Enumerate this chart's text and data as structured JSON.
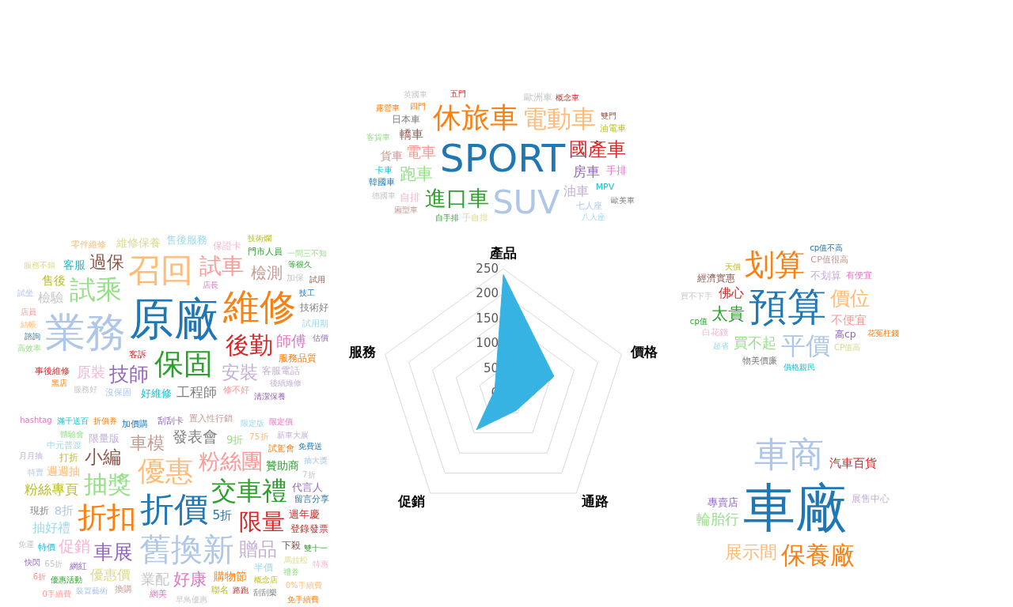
{
  "chart_data": [
    {
      "type": "radar",
      "categories": [
        "產品",
        "價格",
        "通路",
        "促銷",
        "服務"
      ],
      "series": [
        {
          "color": "#36b3e3",
          "values": [
            238,
            107,
            44,
            92,
            18
          ]
        }
      ],
      "ylim": [
        0,
        250
      ],
      "yticks": [
        0,
        50,
        100,
        150,
        200,
        250
      ],
      "grid": true,
      "marker": "none"
    },
    {
      "type": "other",
      "categories": [
        "SPORT",
        "SUV",
        "休旅車",
        "電動車",
        "進口車",
        "國產車",
        "跑車",
        "電車",
        "房車",
        "油車",
        "轎車",
        "貨車",
        "手排",
        "自排",
        "日本車",
        "歐洲車",
        "油電車",
        "手自排",
        "MPV",
        "七人座",
        "韓國車",
        "卡車",
        "自手排",
        "客貨車",
        "四門",
        "五門",
        "概念車",
        "雙門",
        "廂型車",
        "德國車",
        "歐美車",
        "八人座",
        "露營車",
        "英國車"
      ],
      "colors": [
        "#1f77b4",
        "#aec7e8",
        "#ff7f0e",
        "#ffbb78",
        "#2ca02c",
        "#d62728",
        "#98df8a",
        "#ff9896",
        "#9467bd",
        "#c5b0d5",
        "#8c564b",
        "#c49c94",
        "#e377c2",
        "#f7b6d2",
        "#7f7f7f",
        "#c7c7c7",
        "#bcbd22",
        "#dbdb8d",
        "#17becf",
        "#aec7e8",
        "#1f77b4",
        "#17becf",
        "#2ca02c",
        "#98df8a",
        "#ff7f0e",
        "#d62728",
        "#d62728",
        "#8c564b",
        "#c49c94",
        "#c7c7c7",
        "#7f7f7f",
        "#9edae5",
        "#ff7f0e",
        "#c7c7c7"
      ]
    },
    {
      "type": "other",
      "categories": [
        "原廠",
        "業務",
        "維修",
        "召回",
        "保固",
        "試乘",
        "後勤",
        "試車",
        "技師",
        "安裝",
        "過保",
        "檢測",
        "師傅",
        "原裝",
        "工程師",
        "檢驗",
        "售後",
        "維修保養",
        "客服",
        "售後服務",
        "好維修",
        "服務品質",
        "保證卡",
        "客服電話",
        "技術好",
        "客訴",
        "試用期",
        "修不好",
        "沒保固",
        "門市人員",
        "加保",
        "事後維修",
        "零件維修",
        "技工",
        "諮詢",
        "服務好",
        "後續維修",
        "結帳",
        "高效率",
        "服務不錯",
        "等很久",
        "店員",
        "技術爛",
        "清潔保養",
        "店長",
        "估價",
        "試坐",
        "一問三不知",
        "試用",
        "黑店"
      ],
      "colors": [
        "#1f77b4",
        "#aec7e8",
        "#ff7f0e",
        "#ffbb78",
        "#2ca02c",
        "#98df8a",
        "#d62728",
        "#ff9896",
        "#9467bd",
        "#c5b0d5",
        "#8c564b",
        "#c49c94",
        "#e377c2",
        "#f7b6d2",
        "#7f7f7f",
        "#c7c7c7",
        "#bcbd22",
        "#dbdb8d",
        "#17becf",
        "#9edae5",
        "#17becf",
        "#ff7f0e",
        "#f7b6d2",
        "#c5b0d5",
        "#7f7f7f",
        "#d62728",
        "#9edae5",
        "#ff9896",
        "#aec7e8",
        "#2ca02c",
        "#c7c7c7",
        "#d62728",
        "#ffbb78",
        "#1f77b4",
        "#1f77b4",
        "#c7c7c7",
        "#c5b0d5",
        "#ffbb78",
        "#98df8a",
        "#dbdb8d",
        "#2ca02c",
        "#ff9896",
        "#bcbd22",
        "#9467bd",
        "#e377c2",
        "#9467bd",
        "#aec7e8",
        "#98df8a",
        "#8c564b",
        "#ff7f0e"
      ]
    },
    {
      "type": "other",
      "categories": [
        "預算",
        "划算",
        "平價",
        "價位",
        "太貴",
        "買不起",
        "佛心",
        "不便宜",
        "不划算",
        "高cp",
        "經濟實惠",
        "CP值很高",
        "白花錢",
        "有便宜",
        "物美價廉",
        "買不下手",
        "天價",
        "CP值高",
        "價格親民",
        "超省",
        "cp值不高",
        "花冤枉錢",
        "cp值"
      ],
      "colors": [
        "#1f77b4",
        "#ff7f0e",
        "#aec7e8",
        "#ffbb78",
        "#2ca02c",
        "#98df8a",
        "#d62728",
        "#ff9896",
        "#c5b0d5",
        "#9467bd",
        "#8c564b",
        "#c49c94",
        "#f7b6d2",
        "#e377c2",
        "#7f7f7f",
        "#c7c7c7",
        "#bcbd22",
        "#dbdb8d",
        "#17becf",
        "#9edae5",
        "#1f77b4",
        "#ff7f0e",
        "#2ca02c"
      ]
    },
    {
      "type": "other",
      "categories": [
        "折價",
        "舊換新",
        "折扣",
        "優惠",
        "交車禮",
        "抽獎",
        "限量",
        "粉絲團",
        "車展",
        "贈品",
        "小編",
        "車模",
        "好康",
        "促銷",
        "發表會",
        "業配",
        "粉絲專頁",
        "優惠價",
        "抽好禮",
        "5折",
        "8折",
        "購物節",
        "週週抽",
        "贊助商",
        "9折",
        "週年慶",
        "限量版",
        "代言人",
        "登錄發票",
        "下殺",
        "現折",
        "打折",
        "半價",
        "網紅",
        "網美",
        "換購",
        "加價購",
        "特價",
        "刮刮卡",
        "聯名",
        "75折",
        "試駕會",
        "留言分享",
        "中元普渡",
        "置入性行銷",
        "馬拉松",
        "概念店",
        "路跑",
        "早鳥優惠",
        "65折",
        "7折",
        "雙十一",
        "裝置藝術",
        "優惠活動",
        "體驗會",
        "特賣",
        "折價券",
        "禮券",
        "限定版",
        "新車大展",
        "抽大獎",
        "刮刮樂",
        "免運",
        "月月抽",
        "快閃",
        "免費送",
        "0%手續費",
        "特惠",
        "滿千送百",
        "0手續費",
        "限定價",
        "6折",
        "免手續費",
        "hashtag"
      ],
      "colors": [
        "#1f77b4",
        "#aec7e8",
        "#ff7f0e",
        "#ffbb78",
        "#2ca02c",
        "#98df8a",
        "#d62728",
        "#ff9896",
        "#9467bd",
        "#c5b0d5",
        "#8c564b",
        "#c49c94",
        "#e377c2",
        "#f7b6d2",
        "#7f7f7f",
        "#c7c7c7",
        "#bcbd22",
        "#dbdb8d",
        "#9edae5",
        "#1f77b4",
        "#aec7e8",
        "#ff7f0e",
        "#ffbb78",
        "#2ca02c",
        "#98df8a",
        "#d62728",
        "#c5b0d5",
        "#9467bd",
        "#d62728",
        "#8c564b",
        "#7f7f7f",
        "#bcbd22",
        "#9edae5",
        "#9467bd",
        "#e377c2",
        "#c49c94",
        "#1f77b4",
        "#17becf",
        "#9467bd",
        "#bcbd22",
        "#ffbb78",
        "#ff7f0e",
        "#1f77b4",
        "#9edae5",
        "#c49c94",
        "#dbdb8d",
        "#bcbd22",
        "#d62728",
        "#c7c7c7",
        "#c7c7c7",
        "#c7c7c7",
        "#2ca02c",
        "#aec7e8",
        "#2ca02c",
        "#98df8a",
        "#aec7e8",
        "#ff7f0e",
        "#98df8a",
        "#9edae5",
        "#c5b0d5",
        "#aec7e8",
        "#7f7f7f",
        "#c7c7c7",
        "#c5b0d5",
        "#9467bd",
        "#1f77b4",
        "#ffbb78",
        "#f7b6d2",
        "#17becf",
        "#ff9896",
        "#e377c2",
        "#ff9896",
        "#ff7f0e",
        "#e377c2"
      ]
    },
    {
      "type": "other",
      "categories": [
        "車廠",
        "車商",
        "保養廠",
        "展示間",
        "輪胎行",
        "汽車百貨",
        "專賣店",
        "展售中心"
      ],
      "colors": [
        "#1f77b4",
        "#aec7e8",
        "#ff7f0e",
        "#ffbb78",
        "#98df8a",
        "#d62728",
        "#9467bd",
        "#c5b0d5"
      ]
    }
  ]
}
